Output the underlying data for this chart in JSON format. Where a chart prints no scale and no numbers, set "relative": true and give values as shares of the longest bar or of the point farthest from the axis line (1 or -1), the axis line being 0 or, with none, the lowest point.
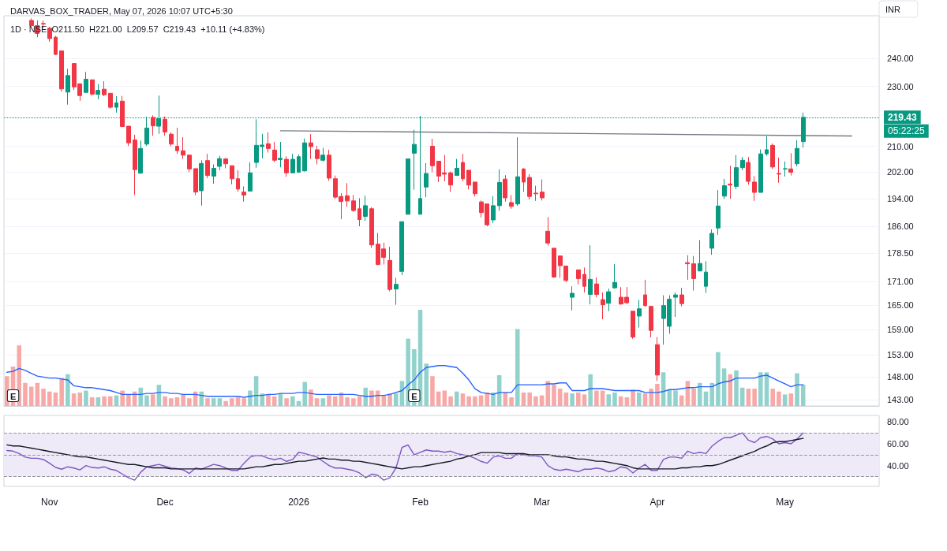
{
  "chart_data": [
    {
      "type": "candlestick",
      "title": "DARVAS_BOX_TRADER, May 07, 2026 10:07 UTC+5:30",
      "subtitle": "1D · NSE  O211.50  H221.00  L209.57  C219.43  +10.11 (+4.83%)",
      "ylabel": "INR",
      "categories": [
        null,
        null,
        null,
        null,
        null,
        null,
        null,
        null,
        null,
        null,
        null,
        null,
        null,
        null,
        null,
        null,
        null,
        null,
        null,
        null,
        null,
        null,
        null,
        null,
        null,
        null,
        null,
        null,
        null,
        null,
        null,
        null,
        null,
        null,
        null,
        null,
        null,
        null,
        null,
        null,
        null,
        null,
        null,
        null,
        null,
        null,
        null,
        null,
        null,
        null,
        null,
        null,
        null,
        null,
        null,
        null,
        null,
        null,
        null,
        null,
        null,
        null,
        null,
        null,
        null,
        null,
        null,
        null,
        null,
        null,
        null,
        null,
        null,
        null,
        null,
        null,
        null,
        null,
        null,
        null,
        null,
        null,
        null,
        null,
        null,
        null,
        null,
        null,
        null,
        null,
        null,
        null,
        null,
        null,
        null,
        null,
        null,
        null,
        null,
        null,
        null,
        null,
        null,
        null,
        null,
        null,
        null,
        null,
        null,
        null,
        null,
        null,
        null,
        null,
        null,
        null,
        null,
        null,
        null,
        null,
        null,
        null,
        null,
        null,
        null,
        null,
        null,
        null,
        null,
        null,
        null,
        null,
        null,
        null,
        null,
        null,
        null,
        null,
        null,
        null,
        null,
        null,
        null,
        null
      ],
      "ohlc": [
        null,
        null,
        null,
        null,
        [
          254.2,
          255.0,
          251.8,
          252.2
        ],
        [
          252.2,
          254.2,
          247.8,
          249.2
        ],
        [
          253.0,
          254.2,
          251.2,
          252.8
        ],
        [
          251.2,
          251.7,
          246.1,
          247.3
        ],
        [
          247.8,
          248.3,
          241.2,
          241.4
        ],
        [
          242.7,
          242.7,
          228.2,
          229.1
        ],
        [
          228.0,
          236.2,
          223.7,
          233.8
        ],
        [
          238.1,
          238.1,
          228.7,
          229.8
        ],
        [
          230.9,
          230.9,
          225.0,
          226.8
        ],
        [
          227.9,
          235.1,
          227.9,
          232.5
        ],
        [
          232.3,
          232.3,
          226.8,
          227.3
        ],
        [
          227.2,
          230.8,
          225.5,
          228.6
        ],
        [
          229.0,
          231.8,
          226.6,
          227.1
        ],
        [
          227.6,
          227.6,
          222.4,
          222.8
        ],
        [
          222.8,
          226.6,
          221.0,
          224.3
        ],
        [
          224.9,
          226.7,
          216.2,
          216.4
        ],
        [
          216.5,
          216.5,
          210.1,
          211.1
        ],
        [
          212.0,
          213.7,
          195.0,
          202.7
        ],
        [
          201.6,
          211.8,
          201.6,
          209.3
        ],
        [
          210.7,
          219.7,
          210.1,
          215.9
        ],
        [
          219.4,
          220.1,
          213.4,
          216.6
        ],
        [
          216.5,
          226.8,
          214.0,
          219.0
        ],
        [
          218.8,
          219.7,
          213.4,
          214.6
        ],
        [
          213.9,
          214.5,
          210.0,
          210.7
        ],
        [
          210.0,
          216.0,
          207.6,
          208.6
        ],
        [
          208.6,
          212.9,
          206.0,
          207.2
        ],
        [
          207.2,
          207.4,
          201.9,
          202.9
        ],
        [
          203.0,
          203.0,
          195.0,
          195.9
        ],
        [
          196.3,
          205.6,
          191.9,
          204.6
        ],
        [
          205.5,
          207.6,
          200.1,
          200.9
        ],
        [
          200.7,
          204.3,
          198.4,
          203.1
        ],
        [
          203.7,
          207.0,
          202.5,
          206.1
        ],
        [
          206.0,
          206.3,
          203.1,
          204.5
        ],
        [
          203.9,
          203.9,
          198.2,
          199.9
        ],
        [
          199.9,
          202.5,
          196.0,
          196.8
        ],
        [
          195.9,
          197.6,
          193.1,
          195.0
        ],
        [
          196.2,
          205.0,
          196.2,
          201.7
        ],
        [
          204.9,
          218.8,
          203.3,
          210.3
        ],
        [
          209.9,
          214.0,
          206.2,
          210.4
        ],
        [
          210.8,
          214.5,
          208.0,
          209.3
        ],
        [
          208.8,
          211.4,
          205.0,
          205.6
        ],
        [
          205.8,
          211.4,
          203.4,
          206.2
        ],
        [
          205.9,
          206.8,
          200.5,
          201.7
        ],
        [
          201.7,
          207.6,
          201.7,
          205.9
        ],
        [
          201.9,
          207.4,
          201.7,
          206.7
        ],
        [
          202.3,
          212.5,
          202.1,
          211.1
        ],
        [
          211.1,
          213.9,
          206.0,
          209.9
        ],
        [
          208.9,
          210.1,
          204.3,
          206.1
        ],
        [
          205.6,
          209.5,
          205.2,
          207.2
        ],
        [
          207.2,
          208.9,
          199.3,
          200.1
        ],
        [
          199.9,
          200.9,
          193.9,
          194.4
        ],
        [
          194.6,
          195.6,
          188.0,
          193.1
        ],
        [
          194.8,
          198.6,
          191.6,
          193.3
        ],
        [
          193.3,
          195.0,
          190.1,
          190.5
        ],
        [
          191.0,
          194.1,
          186.0,
          187.9
        ],
        [
          188.8,
          194.8,
          187.5,
          191.9
        ],
        [
          191.0,
          191.4,
          180.0,
          180.8
        ],
        [
          181.0,
          184.1,
          175.3,
          175.5
        ],
        [
          179.7,
          181.4,
          175.5,
          177.4
        ],
        [
          176.6,
          180.3,
          168.5,
          169.0
        ],
        [
          169.1,
          172.0,
          165.1,
          170.3
        ],
        [
          173.7,
          187.3,
          172.7,
          187.3
        ],
        [
          189.4,
          206.0,
          189.4,
          206.0
        ],
        [
          207.8,
          215.3,
          196.6,
          210.6
        ],
        [
          189.4,
          219.9,
          189.4,
          194.0
        ],
        [
          197.4,
          204.7,
          194.4,
          201.5
        ],
        [
          210.0,
          212.4,
          201.9,
          203.9
        ],
        [
          205.3,
          205.3,
          198.9,
          200.7
        ],
        [
          201.7,
          207.2,
          199.1,
          201.3
        ],
        [
          201.7,
          202.1,
          196.0,
          198.0
        ],
        [
          200.9,
          206.0,
          200.9,
          203.1
        ],
        [
          204.9,
          207.6,
          199.1,
          199.9
        ],
        [
          202.5,
          202.5,
          196.7,
          198.0
        ],
        [
          198.9,
          198.9,
          194.6,
          195.4
        ],
        [
          193.0,
          193.4,
          188.5,
          189.9
        ],
        [
          192.4,
          192.4,
          186.0,
          186.4
        ],
        [
          187.8,
          194.7,
          186.9,
          191.9
        ],
        [
          191.9,
          202.8,
          190.4,
          198.8
        ],
        [
          199.8,
          201.0,
          193.1,
          194.2
        ],
        [
          192.8,
          195.0,
          191.0,
          191.7
        ],
        [
          192.4,
          212.9,
          191.8,
          200.5
        ],
        [
          202.9,
          203.1,
          196.0,
          198.9
        ],
        [
          200.3,
          201.3,
          193.7,
          194.6
        ],
        [
          195.6,
          197.8,
          193.3,
          195.4
        ],
        [
          195.9,
          199.7,
          193.4,
          194.2
        ],
        [
          184.6,
          188.6,
          180.6,
          181.3
        ],
        [
          179.9,
          179.9,
          172.0,
          172.2
        ],
        [
          177.8,
          177.8,
          172.0,
          175.2
        ],
        [
          175.1,
          175.1,
          170.9,
          171.3
        ],
        [
          167.0,
          169.8,
          163.7,
          168.0
        ],
        [
          174.1,
          174.1,
          170.3,
          171.8
        ],
        [
          172.9,
          174.7,
          168.2,
          169.8
        ],
        [
          167.7,
          180.7,
          165.2,
          171.6
        ],
        [
          170.4,
          172.1,
          167.0,
          167.7
        ],
        [
          166.4,
          168.2,
          161.5,
          165.1
        ],
        [
          165.5,
          169.2,
          163.5,
          168.4
        ],
        [
          169.4,
          175.6,
          169.2,
          170.8
        ],
        [
          167.0,
          169.6,
          165.1,
          165.3
        ],
        [
          167.0,
          169.6,
          165.3,
          165.6
        ],
        [
          163.5,
          163.5,
          156.8,
          157.2
        ],
        [
          162.3,
          166.3,
          159.5,
          164.1
        ],
        [
          167.6,
          171.5,
          164.6,
          164.9
        ],
        [
          164.7,
          164.7,
          157.1,
          158.8
        ],
        [
          155.4,
          157.2,
          147.1,
          148.4
        ],
        [
          161.7,
          167.5,
          155.4,
          164.9
        ],
        [
          159.8,
          167.5,
          158.0,
          166.5
        ],
        [
          167.0,
          168.2,
          162.1,
          167.6
        ],
        [
          167.6,
          169.4,
          164.7,
          165.4
        ],
        [
          176.0,
          178.0,
          171.5,
          175.7
        ],
        [
          175.7,
          177.8,
          168.7,
          171.8
        ],
        [
          173.8,
          182.1,
          173.7,
          175.8
        ],
        [
          169.8,
          176.4,
          168.1,
          173.5
        ],
        [
          179.9,
          185.1,
          178.1,
          184.0
        ],
        [
          185.5,
          196.5,
          183.6,
          191.8
        ],
        [
          194.7,
          199.9,
          193.9,
          197.8
        ],
        [
          198.3,
          203.9,
          193.9,
          198.0
        ],
        [
          197.6,
          207.2,
          196.8,
          203.3
        ],
        [
          203.3,
          206.6,
          202.5,
          205.6
        ],
        [
          204.9,
          206.6,
          198.1,
          199.1
        ],
        [
          198.9,
          200.7,
          193.3,
          195.8
        ],
        [
          195.8,
          209.0,
          195.8,
          207.6
        ],
        [
          207.6,
          213.2,
          207.0,
          208.9
        ],
        [
          210.3,
          210.9,
          202.9,
          203.5
        ],
        [
          201.5,
          206.4,
          198.7,
          201.3
        ],
        [
          202.9,
          205.2,
          200.6,
          203.0
        ],
        [
          202.9,
          207.8,
          200.9,
          201.9
        ],
        [
          204.5,
          211.9,
          203.7,
          209.32
        ],
        [
          211.5,
          221.0,
          209.57,
          219.43
        ],
        null,
        null,
        null,
        null,
        null,
        null,
        null,
        null,
        null,
        null,
        null,
        null
      ],
      "colors": [
        null,
        null,
        null,
        null,
        "#f23645",
        "#f23645",
        "#f23645",
        "#f23645",
        "#f23645",
        "#f23645",
        "#089981",
        "#f23645",
        "#f23645",
        "#089981",
        "#f23645",
        "#089981",
        "#f23645",
        "#f23645",
        "#089981",
        "#f23645",
        "#f23645",
        "#f23645",
        "#089981",
        "#089981",
        "#f23645",
        "#089981",
        "#f23645",
        "#f23645",
        "#f23645",
        "#f23645",
        "#f23645",
        "#f23645",
        "#089981",
        "#f23645",
        "#089981",
        "#089981",
        "#f23645",
        "#f23645",
        "#f23645",
        "#f23645",
        "#089981",
        "#089981",
        "#089981",
        "#f23645",
        "#f23645",
        "#089981",
        "#f23645",
        "#089981",
        "#089981",
        "#089981",
        "#f23645",
        "#f23645",
        "#089981",
        "#f23645",
        "#f23645",
        "#f23645",
        "#f23645",
        "#f23645",
        "#f23645",
        "#089981",
        "#f23645",
        "#f23645",
        "#f23645",
        "#f23645",
        "#089981",
        "#089981",
        "#089981",
        "#089981",
        "#089981",
        "#089981",
        "#f23645",
        "#f23645",
        "#f23645",
        "#f23645",
        "#089981",
        "#f23645",
        "#f23645",
        "#f23645",
        "#f23645",
        "#f23645",
        "#089981",
        "#089981",
        "#f23645",
        "#f23645",
        "#089981",
        "#f23645",
        "#f23645",
        "#f23645",
        "#f23645",
        "#f23645",
        "#f23645",
        "#f23645",
        "#f23645",
        "#089981",
        "#f23645",
        "#f23645",
        "#089981",
        "#f23645",
        "#f23645",
        "#089981",
        "#089981",
        "#f23645",
        "#f23645",
        "#f23645",
        "#089981",
        "#f23645",
        "#f23645",
        "#f23645",
        "#089981",
        "#089981",
        "#089981",
        "#f23645",
        "#f23645",
        "#f23645",
        "#089981",
        "#089981",
        "#089981",
        "#089981",
        "#089981",
        "#f23645",
        "#089981",
        "#089981",
        "#f23645",
        "#f23645",
        "#089981",
        "#089981",
        "#f23645",
        "#f23645",
        "#089981",
        "#f23645",
        "#089981",
        "#089981",
        null,
        null,
        null,
        null,
        null,
        null,
        null,
        null,
        null,
        null,
        null,
        null
      ],
      "series": [
        {
          "type": "line",
          "color": "#787b86",
          "values": [
            null,
            null,
            null,
            null,
            null,
            null,
            null,
            null,
            null,
            null,
            null,
            null,
            null,
            null,
            null,
            null,
            null,
            null,
            null,
            null,
            null,
            null,
            null,
            null,
            null,
            null,
            null,
            null,
            null,
            null,
            null,
            null,
            null,
            null,
            null,
            null,
            null,
            null,
            null,
            null,
            null,
            null,
            null,
            null,
            null,
            215.0,
            null,
            null,
            null,
            null,
            null,
            null,
            null,
            null,
            null,
            null,
            null,
            null,
            null,
            null,
            null,
            null,
            null,
            null,
            null,
            null,
            null,
            null,
            null,
            null,
            null,
            null,
            null,
            null,
            null,
            null,
            null,
            null,
            null,
            null,
            null,
            null,
            null,
            null,
            null,
            null,
            null,
            null,
            null,
            null,
            null,
            null,
            null,
            null,
            null,
            null,
            null,
            null,
            null,
            null,
            null,
            null,
            null,
            null,
            null,
            null,
            null,
            null,
            null,
            null,
            null,
            null,
            null,
            null,
            null,
            null,
            null,
            null,
            null,
            null,
            null,
            null,
            null,
            null,
            null,
            null,
            null,
            null,
            null,
            null,
            null,
            null,
            null,
            null,
            null,
            null,
            null,
            null,
            null,
            213.3,
            null,
            null,
            null,
            null
          ]
        }
      ],
      "log": "y",
      "ylim": [
        141.6,
        256
      ],
      "yticks": [
        {
          "value": 143,
          "label": "143.00"
        },
        {
          "value": 148,
          "label": "148.00"
        },
        {
          "value": 153,
          "label": "153.00"
        },
        {
          "value": 159,
          "label": "159.00"
        },
        {
          "value": 165,
          "label": "165.00"
        },
        {
          "value": 171,
          "label": "171.00"
        },
        {
          "value": 178.5,
          "label": "178.50"
        },
        {
          "value": 186,
          "label": "186.00"
        },
        {
          "value": 194,
          "label": "194.00"
        },
        {
          "value": 202,
          "label": "202.00"
        },
        {
          "value": 210,
          "label": "210.00"
        },
        {
          "value": 230,
          "label": "230.00"
        },
        {
          "value": 240,
          "label": "240.00"
        }
      ],
      "grid": "y",
      "marker": "none",
      "tick_labels": "y",
      "ref_lines": [
        {
          "axis": "y",
          "value": 219.43,
          "label": "219.43",
          "color": "#089981",
          "line_style": "dotted"
        }
      ],
      "annotations": [
        "05:22:25"
      ]
    },
    {
      "type": "bar",
      "relative": true,
      "tick_labels": false,
      "marker": "none",
      "categories": [
        null,
        null,
        null,
        null,
        null,
        null,
        null,
        null,
        null,
        null,
        null,
        null,
        null,
        null,
        null,
        null,
        null,
        null,
        null,
        null,
        null,
        null,
        null,
        null,
        null,
        null,
        null,
        null,
        null,
        null,
        null,
        null,
        null,
        null,
        null,
        null,
        null,
        null,
        null,
        null,
        null,
        null,
        null,
        null,
        null,
        null,
        null,
        null,
        null,
        null,
        null,
        null,
        null,
        null,
        null,
        null,
        null,
        null,
        null,
        null,
        null,
        null,
        null,
        null,
        null,
        null,
        null,
        null,
        null,
        null,
        null,
        null,
        null,
        null,
        null,
        null,
        null,
        null,
        null,
        null,
        null,
        null,
        null,
        null,
        null,
        null,
        null,
        null,
        null,
        null,
        null,
        null,
        null,
        null,
        null,
        null,
        null,
        null,
        null,
        null,
        null,
        null,
        null,
        null,
        null,
        null,
        null,
        null,
        null,
        null,
        null,
        null,
        null,
        null,
        null,
        null,
        null,
        null,
        null,
        null,
        null,
        null,
        null,
        null,
        null,
        null,
        null,
        null,
        null,
        null,
        null,
        null,
        null,
        null,
        null,
        null,
        null,
        null,
        null,
        null,
        null,
        null,
        null,
        null
      ],
      "series": [
        {
          "type": "bar",
          "values": [
            0.31,
            0.41,
            0.63,
            0.24,
            0.2,
            0.24,
            0.18,
            0.15,
            0.14,
            0.29,
            0.33,
            0.13,
            0.14,
            0.16,
            0.09,
            0.09,
            0.1,
            0.1,
            0.11,
            0.16,
            0.12,
            0.15,
            0.19,
            0.11,
            0.12,
            0.22,
            0.1,
            0.08,
            0.09,
            0.12,
            0.08,
            0.15,
            0.15,
            0.08,
            0.08,
            0.08,
            0.05,
            0.08,
            0.09,
            0.08,
            0.16,
            0.31,
            0.13,
            0.12,
            0.1,
            0.13,
            0.08,
            0.1,
            0.05,
            0.25,
            0.17,
            0.08,
            0.08,
            0.11,
            0.1,
            0.14,
            0.09,
            0.08,
            0.1,
            0.19,
            0.16,
            0.16,
            0.11,
            0.13,
            0.13,
            0.26,
            0.7,
            0.59,
            1,
            0.44,
            0.31,
            0.15,
            0.16,
            0.1,
            0.15,
            0.13,
            0.1,
            0.1,
            0.11,
            0.14,
            0.14,
            0.32,
            0.14,
            0.09,
            0.8,
            0.14,
            0.14,
            0.1,
            0.11,
            0.26,
            0.22,
            0.18,
            0.14,
            0.13,
            0.14,
            0.12,
            0.33,
            0.16,
            0.16,
            0.12,
            0.14,
            0.1,
            0.09,
            0.17,
            0.14,
            0.13,
            0.18,
            0.23,
            0.35,
            0.17,
            0.16,
            0.11,
            0.26,
            0.18,
            0.24,
            0.15,
            0.24,
            0.56,
            0.39,
            0.33,
            0.37,
            0.19,
            0.18,
            0.18,
            0.35,
            0.35,
            0.18,
            0.15,
            0.12,
            0.13,
            0.34,
            0.22,
            null,
            null,
            null,
            null,
            null,
            null,
            null,
            null,
            null,
            null,
            null,
            null
          ],
          "colors": [
            "#f7a9a7",
            "#f7a9a7",
            "#f7a9a7",
            "#f7a9a7",
            "#f7a9a7",
            "#f7a9a7",
            "#f7a9a7",
            "#f7a9a7",
            "#f7a9a7",
            "#f7a9a7",
            "#92d2cc",
            "#f7a9a7",
            "#f7a9a7",
            "#92d2cc",
            "#f7a9a7",
            "#92d2cc",
            "#f7a9a7",
            "#f7a9a7",
            "#92d2cc",
            "#f7a9a7",
            "#f7a9a7",
            "#f7a9a7",
            "#92d2cc",
            "#92d2cc",
            "#f7a9a7",
            "#92d2cc",
            "#f7a9a7",
            "#f7a9a7",
            "#f7a9a7",
            "#f7a9a7",
            "#f7a9a7",
            "#f7a9a7",
            "#92d2cc",
            "#f7a9a7",
            "#92d2cc",
            "#92d2cc",
            "#f7a9a7",
            "#f7a9a7",
            "#f7a9a7",
            "#f7a9a7",
            "#92d2cc",
            "#92d2cc",
            "#92d2cc",
            "#f7a9a7",
            "#f7a9a7",
            "#92d2cc",
            "#f7a9a7",
            "#92d2cc",
            "#92d2cc",
            "#92d2cc",
            "#f7a9a7",
            "#f7a9a7",
            "#92d2cc",
            "#f7a9a7",
            "#f7a9a7",
            "#f7a9a7",
            "#f7a9a7",
            "#f7a9a7",
            "#f7a9a7",
            "#92d2cc",
            "#f7a9a7",
            "#f7a9a7",
            "#f7a9a7",
            "#f7a9a7",
            "#92d2cc",
            "#92d2cc",
            "#92d2cc",
            "#92d2cc",
            "#92d2cc",
            "#92d2cc",
            "#f7a9a7",
            "#f7a9a7",
            "#f7a9a7",
            "#f7a9a7",
            "#92d2cc",
            "#f7a9a7",
            "#f7a9a7",
            "#f7a9a7",
            "#f7a9a7",
            "#f7a9a7",
            "#92d2cc",
            "#92d2cc",
            "#f7a9a7",
            "#f7a9a7",
            "#92d2cc",
            "#f7a9a7",
            "#f7a9a7",
            "#f7a9a7",
            "#f7a9a7",
            "#f7a9a7",
            "#f7a9a7",
            "#f7a9a7",
            "#f7a9a7",
            "#92d2cc",
            "#f7a9a7",
            "#f7a9a7",
            "#92d2cc",
            "#f7a9a7",
            "#f7a9a7",
            "#92d2cc",
            "#92d2cc",
            "#f7a9a7",
            "#f7a9a7",
            "#f7a9a7",
            "#92d2cc",
            "#f7a9a7",
            "#f7a9a7",
            "#f7a9a7",
            "#92d2cc",
            "#92d2cc",
            "#92d2cc",
            "#f7a9a7",
            "#f7a9a7",
            "#f7a9a7",
            "#92d2cc",
            "#92d2cc",
            "#92d2cc",
            "#92d2cc",
            "#92d2cc",
            "#f7a9a7",
            "#92d2cc",
            "#92d2cc",
            "#f7a9a7",
            "#f7a9a7",
            "#92d2cc",
            "#92d2cc",
            "#f7a9a7",
            "#f7a9a7",
            "#92d2cc",
            "#f7a9a7",
            "#92d2cc",
            "#92d2cc",
            null,
            null,
            null,
            null,
            null,
            null,
            null,
            null,
            null,
            null,
            null,
            null
          ]
        },
        {
          "type": "line",
          "color": "#2962ff",
          "values": [
            0.35,
            0.36,
            0.39,
            0.37,
            0.34,
            0.31,
            0.3,
            0.29,
            0.29,
            0.28,
            0.27,
            0.21,
            0.2,
            0.19,
            0.19,
            0.18,
            0.17,
            0.16,
            0.14,
            0.12,
            0.12,
            0.12,
            0.12,
            0.13,
            0.13,
            0.14,
            0.14,
            0.13,
            0.13,
            0.12,
            0.12,
            0.12,
            0.11,
            0.1,
            0.1,
            0.1,
            0.1,
            0.1,
            0.1,
            0.09,
            0.1,
            0.11,
            0.11,
            0.12,
            0.12,
            0.13,
            0.13,
            0.13,
            0.14,
            0.14,
            0.13,
            0.12,
            0.12,
            0.12,
            0.12,
            0.12,
            0.12,
            0.12,
            0.11,
            0.1,
            0.1,
            0.11,
            0.11,
            0.12,
            0.14,
            0.16,
            0.22,
            0.27,
            0.35,
            0.4,
            0.41,
            0.42,
            0.42,
            0.41,
            0.4,
            0.34,
            0.27,
            0.18,
            0.14,
            0.13,
            0.12,
            0.14,
            0.14,
            0.14,
            0.22,
            0.22,
            0.22,
            0.22,
            0.22,
            0.23,
            0.23,
            0.24,
            0.24,
            0.16,
            0.16,
            0.16,
            0.18,
            0.18,
            0.18,
            0.17,
            0.16,
            0.16,
            0.16,
            0.16,
            0.16,
            0.14,
            0.14,
            0.14,
            0.15,
            0.17,
            0.17,
            0.18,
            0.19,
            0.19,
            0.2,
            0.2,
            0.2,
            0.23,
            0.25,
            0.26,
            0.29,
            0.29,
            0.29,
            0.29,
            0.31,
            0.32,
            0.29,
            0.26,
            0.23,
            0.2,
            0.22,
            0.22,
            null,
            null,
            null,
            null,
            null,
            null,
            null,
            null,
            null,
            null,
            null,
            null
          ]
        }
      ],
      "annotations": [
        "E",
        "E"
      ]
    },
    {
      "type": "line",
      "marker": "none",
      "grid": false,
      "categories": [
        null,
        null,
        null,
        null,
        null,
        null,
        null,
        "Nov",
        null,
        null,
        null,
        null,
        null,
        null,
        null,
        null,
        null,
        null,
        null,
        null,
        null,
        null,
        null,
        null,
        null,
        null,
        "Dec",
        null,
        null,
        null,
        null,
        null,
        null,
        null,
        null,
        null,
        null,
        null,
        null,
        null,
        null,
        null,
        null,
        null,
        null,
        null,
        null,
        null,
        "2026",
        null,
        null,
        null,
        null,
        null,
        null,
        null,
        null,
        null,
        null,
        null,
        null,
        null,
        null,
        null,
        null,
        null,
        null,
        null,
        "Feb",
        null,
        null,
        null,
        null,
        null,
        null,
        null,
        null,
        null,
        null,
        null,
        null,
        null,
        null,
        null,
        null,
        null,
        null,
        null,
        "Mar",
        null,
        null,
        null,
        null,
        null,
        null,
        null,
        null,
        null,
        null,
        null,
        null,
        null,
        null,
        null,
        null,
        null,
        null,
        "Apr",
        null,
        null,
        null,
        null,
        null,
        null,
        null,
        null,
        null,
        null,
        null,
        null,
        null,
        null,
        null,
        null,
        null,
        null,
        null,
        null,
        "May",
        null,
        null,
        null,
        null,
        null,
        null,
        null,
        null,
        null,
        null,
        null,
        null,
        null,
        null,
        null
      ],
      "series": [
        {
          "color": "#7e57c2",
          "values": [
            53.9,
            53.3,
            51.1,
            47.8,
            46.7,
            46.7,
            45.6,
            42.2,
            38.3,
            36.7,
            38.9,
            37.8,
            36.1,
            40,
            38.3,
            37.8,
            38.9,
            36.7,
            35.6,
            32.2,
            28.9,
            26.7,
            33.9,
            38.9,
            40,
            41.1,
            39.4,
            37.8,
            37.2,
            36.1,
            32.8,
            37.8,
            36.7,
            38.9,
            41.1,
            40,
            37.8,
            35.6,
            35.6,
            42.2,
            47.8,
            49.4,
            48.9,
            46.7,
            45.6,
            46.7,
            43.9,
            45.6,
            52.2,
            51.1,
            49.4,
            47.8,
            43.9,
            40,
            37.8,
            37.8,
            36.7,
            35.6,
            33.3,
            28.9,
            32.2,
            31.1,
            26.7,
            28.9,
            37.8,
            56.7,
            58.9,
            50,
            52.2,
            54.4,
            53.3,
            53.3,
            52.2,
            53.3,
            51.1,
            50,
            48.9,
            46.7,
            43.9,
            42.2,
            47.8,
            48.9,
            46.7,
            46.7,
            51.1,
            50,
            48.9,
            48.9,
            47.8,
            40,
            36.7,
            35.6,
            36.7,
            35.6,
            34.4,
            36.7,
            36.7,
            37.8,
            36.7,
            34.4,
            35.6,
            38.9,
            37.8,
            33.3,
            37.8,
            41.1,
            35.6,
            35.6,
            45.6,
            47.8,
            47.8,
            46.7,
            53.3,
            51.1,
            52.2,
            51.1,
            57.8,
            62.2,
            65.6,
            65.6,
            67.8,
            70,
            63.3,
            61.1,
            65.6,
            66.7,
            64.4,
            60,
            61.1,
            60,
            64.4,
            70,
            null,
            null,
            null,
            null,
            null,
            null,
            null,
            null,
            null,
            null,
            null,
            null
          ]
        },
        {
          "color": "#131722",
          "values": [
            59,
            58,
            58,
            57,
            56,
            55,
            54,
            53,
            52,
            51,
            50,
            49,
            48,
            48,
            47,
            46,
            45,
            44,
            43,
            42,
            41,
            41,
            40,
            39,
            38,
            38,
            38,
            37,
            37,
            37,
            37,
            37,
            37,
            37,
            37,
            37,
            37,
            37,
            37,
            37,
            38,
            39,
            39,
            40,
            41,
            41,
            42,
            43,
            44,
            44,
            45,
            46,
            47,
            46,
            46,
            45,
            45,
            44,
            44,
            43,
            42,
            41,
            40,
            39,
            38,
            37,
            38,
            39,
            39,
            40,
            41,
            42,
            43,
            44,
            46,
            47,
            49,
            50,
            52,
            52,
            52,
            52,
            51,
            51,
            51,
            51,
            50,
            50,
            50,
            50,
            49,
            48,
            48,
            47,
            46,
            46,
            45,
            44,
            44,
            43,
            42,
            41,
            40,
            38,
            37,
            37,
            37,
            37,
            37,
            37,
            37,
            38,
            38,
            39,
            39,
            40,
            40,
            41,
            43,
            45,
            47,
            49,
            51,
            53,
            56,
            58,
            61,
            62,
            62,
            63,
            64,
            65,
            null,
            null,
            null,
            null,
            null,
            null,
            null,
            null,
            null,
            null,
            null,
            null
          ]
        }
      ],
      "ylim": [
        21,
        86
      ],
      "yticks": [
        {
          "value": 40,
          "label": "40.00"
        },
        {
          "value": 60,
          "label": "60.00"
        },
        {
          "value": 80,
          "label": "80.00"
        }
      ],
      "ref_lines": [
        {
          "axis": "y",
          "value": 70,
          "color": "#9598a1",
          "line_style": "dashed"
        },
        {
          "axis": "y",
          "value": 50,
          "color": "#9598a1",
          "line_style": "dashed"
        },
        {
          "axis": "y",
          "value": 30,
          "color": "#9598a1",
          "line_style": "dashed"
        }
      ],
      "bands": [
        {
          "axis": "y",
          "from": 30,
          "to": 70,
          "color": "#efeaf8"
        }
      ]
    }
  ]
}
